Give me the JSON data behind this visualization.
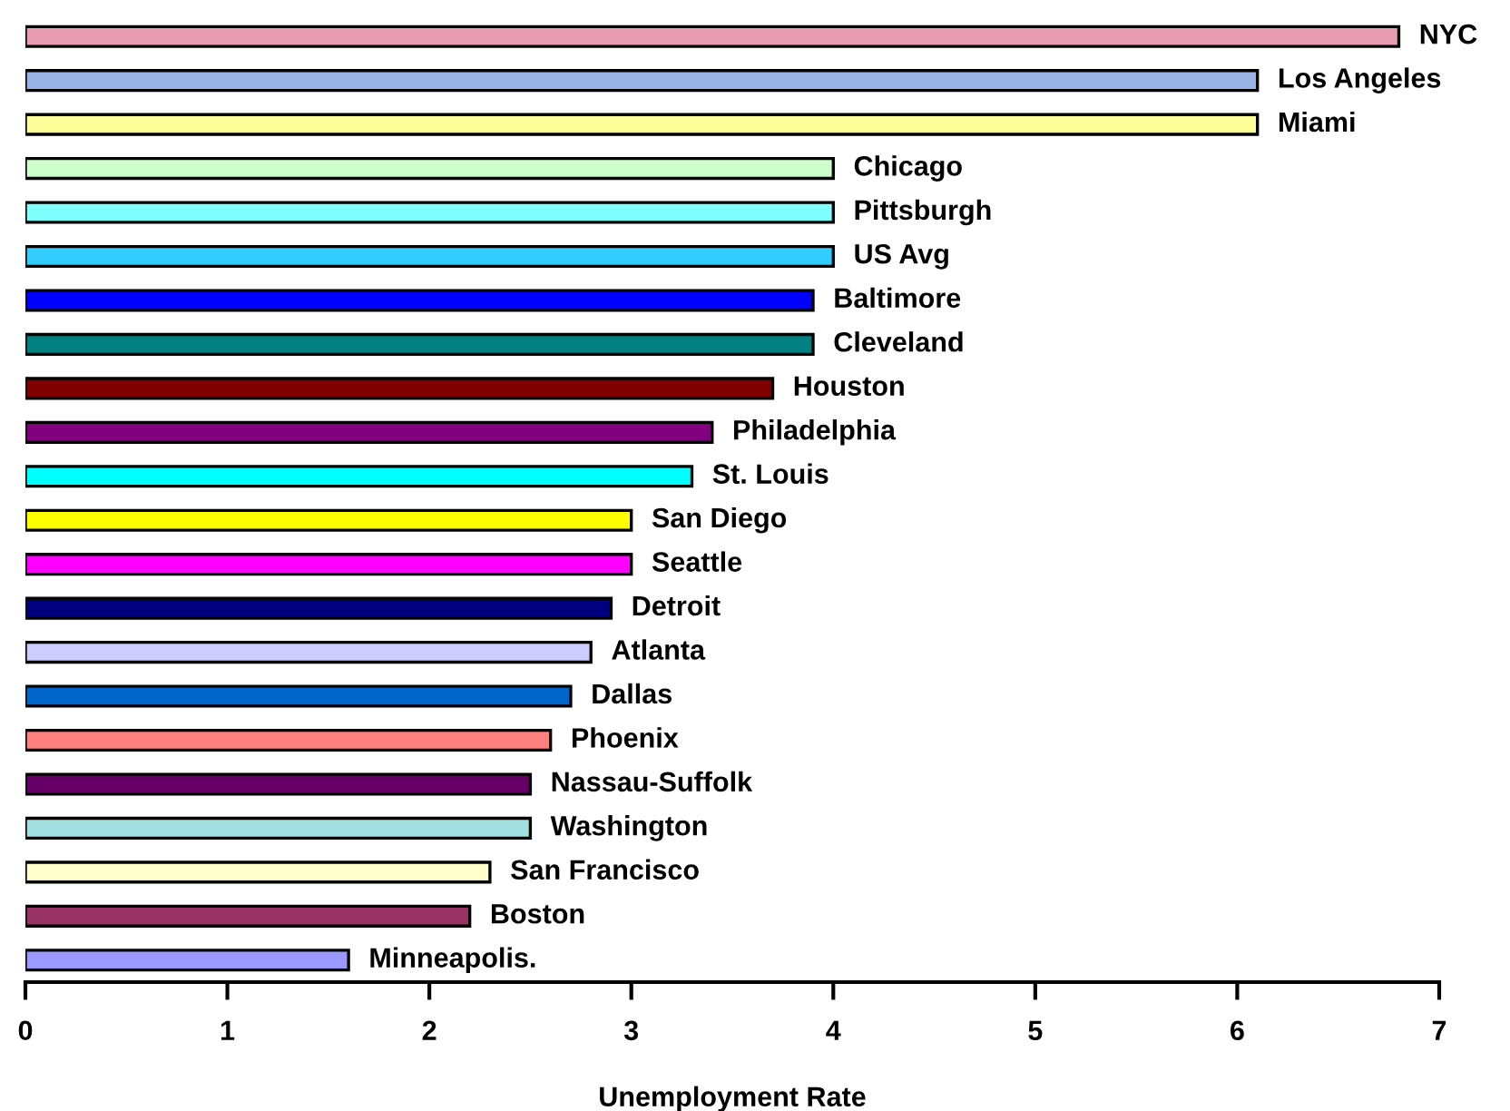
{
  "chart_data": {
    "type": "bar",
    "orientation": "horizontal",
    "xlabel": "Unemployment Rate",
    "categories": [
      "NYC",
      "Los Angeles",
      "Miami",
      "Chicago",
      "Pittsburgh",
      "US Avg",
      "Baltimore",
      "Cleveland",
      "Houston",
      "Philadelphia",
      "St. Louis",
      "San Diego",
      "Seattle",
      "Detroit",
      "Atlanta",
      "Dallas",
      "Phoenix",
      "Nassau-Suffolk",
      "Washington",
      "San Francisco",
      "Boston",
      "Minneapolis."
    ],
    "values": [
      6.8,
      6.1,
      6.1,
      4.0,
      4.0,
      4.0,
      3.9,
      3.9,
      3.7,
      3.4,
      3.3,
      3.0,
      3.0,
      2.9,
      2.8,
      2.7,
      2.6,
      2.5,
      2.5,
      2.3,
      2.2,
      1.6
    ],
    "colors": [
      "#e79bb0",
      "#99b3e6",
      "#ffff99",
      "#ccffcc",
      "#80ffff",
      "#33ccff",
      "#0000ff",
      "#008080",
      "#800000",
      "#800080",
      "#00ffff",
      "#ffff00",
      "#ff00ff",
      "#000080",
      "#ccccff",
      "#0066cc",
      "#ff8080",
      "#660066",
      "#a0e0e0",
      "#ffffcc",
      "#993366",
      "#9999ff"
    ],
    "xlim": [
      0,
      7
    ],
    "xticks": [
      0,
      1,
      2,
      3,
      4,
      5,
      6,
      7
    ],
    "grid": false,
    "legend": false
  }
}
